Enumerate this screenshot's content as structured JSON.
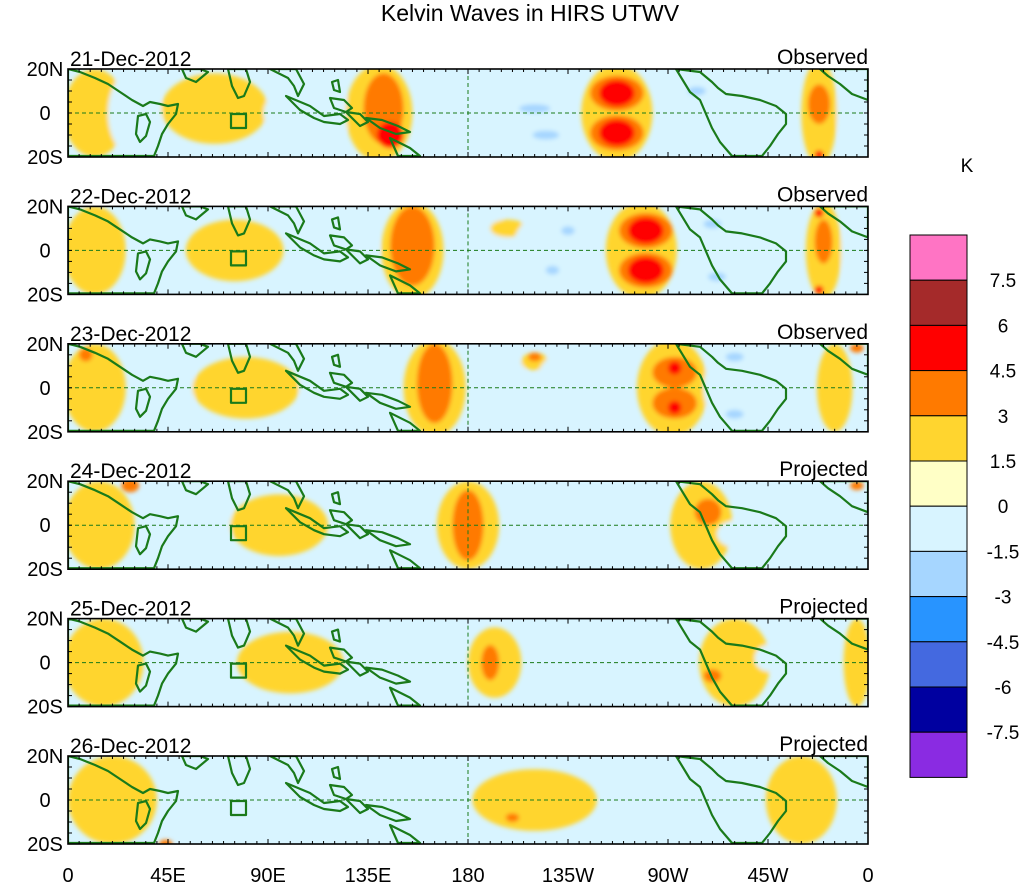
{
  "chart_data": {
    "type": "heatmap",
    "title": "Kelvin Waves in HIRS UTWV",
    "variable": "HIRS UTWV anomaly",
    "units": "K",
    "x_tick_labels": [
      "0",
      "45E",
      "90E",
      "135E",
      "180",
      "135W",
      "90W",
      "45W",
      "0"
    ],
    "x_ticks_deg": [
      0,
      45,
      90,
      135,
      180,
      225,
      270,
      315,
      360
    ],
    "xlim": [
      0,
      360
    ],
    "y_tick_labels": [
      "20N",
      "0",
      "20S"
    ],
    "y_ticks_deg": [
      20,
      0,
      -20
    ],
    "ylim": [
      -20,
      20
    ],
    "colorbar": {
      "label": "K",
      "levels": [
        "7.5",
        "6",
        "4.5",
        "3",
        "1.5",
        "0",
        "-1.5",
        "-3",
        "-4.5",
        "-6",
        "-7.5"
      ],
      "colors": [
        "#ff74c4",
        "#a52a2a",
        "#ff0000",
        "#ff7a00",
        "#ffd52f",
        "#ffffc6",
        "#d8f4ff",
        "#a6d6ff",
        "#2894ff",
        "#4469e0",
        "#0000a0",
        "#8a2be2"
      ]
    },
    "panels": [
      {
        "date": "21-Dec-2012",
        "status": "Observed",
        "blobs": [
          {
            "lon": 12,
            "lat": 0,
            "rlon": 14,
            "rlat": 20,
            "level": 1
          },
          {
            "lon": 30,
            "lat": 0,
            "rlon": 12,
            "rlat": 20,
            "level": -1
          },
          {
            "lon": 66,
            "lat": 2,
            "rlon": 24,
            "rlat": 16,
            "level": 1
          },
          {
            "lon": 108,
            "lat": 0,
            "rlon": 20,
            "rlat": 14,
            "level": -1
          },
          {
            "lon": 140,
            "lat": 0,
            "rlon": 15,
            "rlat": 22,
            "level": 1
          },
          {
            "lon": 142,
            "lat": 2,
            "rlon": 9,
            "rlat": 16,
            "level": 2
          },
          {
            "lon": 145,
            "lat": -10,
            "rlon": 6,
            "rlat": 6,
            "level": 3
          },
          {
            "lon": 172,
            "lat": 0,
            "rlon": 14,
            "rlat": 20,
            "level": -1
          },
          {
            "lon": 205,
            "lat": 0,
            "rlon": 20,
            "rlat": 16,
            "level": -1
          },
          {
            "lon": 210,
            "lat": 2,
            "rlon": 7,
            "rlat": 2,
            "level": -2
          },
          {
            "lon": 215,
            "lat": -10,
            "rlon": 6,
            "rlat": 2,
            "level": -2
          },
          {
            "lon": 247,
            "lat": 0,
            "rlon": 16,
            "rlat": 22,
            "level": 1
          },
          {
            "lon": 247,
            "lat": 9,
            "rlon": 12,
            "rlat": 8,
            "level": 2
          },
          {
            "lon": 247,
            "lat": -9,
            "rlon": 12,
            "rlat": 8,
            "level": 2
          },
          {
            "lon": 247,
            "lat": 9,
            "rlon": 8,
            "rlat": 6,
            "level": 3
          },
          {
            "lon": 247,
            "lat": -9,
            "rlon": 8,
            "rlat": 6,
            "level": 3
          },
          {
            "lon": 280,
            "lat": 0,
            "rlon": 12,
            "rlat": 18,
            "level": -1
          },
          {
            "lon": 283,
            "lat": 10,
            "rlon": 4,
            "rlat": 2,
            "level": -2
          },
          {
            "lon": 314,
            "lat": 0,
            "rlon": 12,
            "rlat": 20,
            "level": -1
          },
          {
            "lon": 338,
            "lat": 0,
            "rlon": 8,
            "rlat": 24,
            "level": 1
          },
          {
            "lon": 338,
            "lat": 4,
            "rlon": 5,
            "rlat": 9,
            "level": 2
          },
          {
            "lon": 338,
            "lat": -19,
            "rlon": 2,
            "rlat": 2,
            "level": 3
          },
          {
            "lon": 354,
            "lat": 0,
            "rlon": 8,
            "rlat": 20,
            "level": -1
          }
        ]
      },
      {
        "date": "22-Dec-2012",
        "status": "Observed",
        "blobs": [
          {
            "lon": 12,
            "lat": 0,
            "rlon": 14,
            "rlat": 20,
            "level": 1
          },
          {
            "lon": 38,
            "lat": 0,
            "rlon": 10,
            "rlat": 20,
            "level": -1
          },
          {
            "lon": 75,
            "lat": 0,
            "rlon": 22,
            "rlat": 14,
            "level": 1
          },
          {
            "lon": 122,
            "lat": 0,
            "rlon": 18,
            "rlat": 14,
            "level": -1
          },
          {
            "lon": 155,
            "lat": 0,
            "rlon": 14,
            "rlat": 22,
            "level": 1
          },
          {
            "lon": 155,
            "lat": 2,
            "rlon": 10,
            "rlat": 18,
            "level": 2
          },
          {
            "lon": 188,
            "lat": 0,
            "rlon": 12,
            "rlat": 18,
            "level": -1
          },
          {
            "lon": 198,
            "lat": 10,
            "rlon": 8,
            "rlat": 4,
            "level": 1
          },
          {
            "lon": 218,
            "lat": 0,
            "rlon": 18,
            "rlat": 18,
            "level": -1
          },
          {
            "lon": 225,
            "lat": 9,
            "rlon": 3,
            "rlat": 2,
            "level": -2
          },
          {
            "lon": 218,
            "lat": -9,
            "rlon": 3,
            "rlat": 2,
            "level": -2
          },
          {
            "lon": 258,
            "lat": 0,
            "rlon": 16,
            "rlat": 22,
            "level": 1
          },
          {
            "lon": 260,
            "lat": 9,
            "rlon": 12,
            "rlat": 8,
            "level": 2
          },
          {
            "lon": 260,
            "lat": -9,
            "rlon": 12,
            "rlat": 8,
            "level": 2
          },
          {
            "lon": 260,
            "lat": 9,
            "rlon": 8,
            "rlat": 6,
            "level": 3
          },
          {
            "lon": 260,
            "lat": -9,
            "rlon": 8,
            "rlat": 6,
            "level": 3
          },
          {
            "lon": 290,
            "lat": 0,
            "rlon": 12,
            "rlat": 18,
            "level": -1
          },
          {
            "lon": 290,
            "lat": 12,
            "rlon": 4,
            "rlat": 2,
            "level": -2
          },
          {
            "lon": 292,
            "lat": -12,
            "rlon": 4,
            "rlat": 2,
            "level": -2
          },
          {
            "lon": 340,
            "lat": 0,
            "rlon": 8,
            "rlat": 22,
            "level": 1
          },
          {
            "lon": 340,
            "lat": 4,
            "rlon": 4,
            "rlat": 10,
            "level": 2
          },
          {
            "lon": 338,
            "lat": 17,
            "rlon": 2,
            "rlat": 2,
            "level": 3
          },
          {
            "lon": 338,
            "lat": -18,
            "rlon": 2,
            "rlat": 2,
            "level": 3
          },
          {
            "lon": 355,
            "lat": 0,
            "rlon": 7,
            "rlat": 20,
            "level": -1
          }
        ]
      },
      {
        "date": "23-Dec-2012",
        "status": "Observed",
        "blobs": [
          {
            "lon": 12,
            "lat": 0,
            "rlon": 14,
            "rlat": 20,
            "level": 1
          },
          {
            "lon": 8,
            "lat": 15,
            "rlon": 3,
            "rlat": 3,
            "level": 2
          },
          {
            "lon": 45,
            "lat": 0,
            "rlon": 12,
            "rlat": 20,
            "level": -1
          },
          {
            "lon": 80,
            "lat": 0,
            "rlon": 24,
            "rlat": 14,
            "level": 1
          },
          {
            "lon": 120,
            "lat": 0,
            "rlon": 16,
            "rlat": 12,
            "level": -1
          },
          {
            "lon": 165,
            "lat": 0,
            "rlon": 14,
            "rlat": 22,
            "level": 1
          },
          {
            "lon": 165,
            "lat": 2,
            "rlon": 8,
            "rlat": 18,
            "level": 2
          },
          {
            "lon": 197,
            "lat": 0,
            "rlon": 10,
            "rlat": 16,
            "level": -1
          },
          {
            "lon": 210,
            "lat": 12,
            "rlon": 6,
            "rlat": 4,
            "level": 1
          },
          {
            "lon": 210,
            "lat": 14,
            "rlon": 3,
            "rlat": 2,
            "level": 2
          },
          {
            "lon": 228,
            "lat": 0,
            "rlon": 18,
            "rlat": 18,
            "level": -1
          },
          {
            "lon": 272,
            "lat": 0,
            "rlon": 16,
            "rlat": 22,
            "level": 1
          },
          {
            "lon": 273,
            "lat": 7,
            "rlon": 10,
            "rlat": 7,
            "level": 2
          },
          {
            "lon": 273,
            "lat": -7,
            "rlon": 10,
            "rlat": 7,
            "level": 2
          },
          {
            "lon": 273,
            "lat": 9,
            "rlon": 3,
            "rlat": 3,
            "level": 3
          },
          {
            "lon": 273,
            "lat": -9,
            "rlon": 3,
            "rlat": 3,
            "level": 3
          },
          {
            "lon": 298,
            "lat": 0,
            "rlon": 12,
            "rlat": 18,
            "level": -1
          },
          {
            "lon": 300,
            "lat": 14,
            "rlon": 4,
            "rlat": 2,
            "level": -2
          },
          {
            "lon": 300,
            "lat": -12,
            "rlon": 4,
            "rlat": 2,
            "level": -2
          },
          {
            "lon": 345,
            "lat": 0,
            "rlon": 8,
            "rlat": 20,
            "level": 1
          },
          {
            "lon": 355,
            "lat": 18,
            "rlon": 3,
            "rlat": 2,
            "level": 2
          }
        ]
      },
      {
        "date": "24-Dec-2012",
        "status": "Projected",
        "blobs": [
          {
            "lon": 14,
            "lat": 0,
            "rlon": 16,
            "rlat": 20,
            "level": 1
          },
          {
            "lon": 28,
            "lat": 18,
            "rlon": 4,
            "rlat": 3,
            "level": 2
          },
          {
            "lon": 60,
            "lat": 0,
            "rlon": 14,
            "rlat": 16,
            "level": -1
          },
          {
            "lon": 95,
            "lat": 0,
            "rlon": 22,
            "rlat": 14,
            "level": 1
          },
          {
            "lon": 135,
            "lat": 0,
            "rlon": 14,
            "rlat": 12,
            "level": -1
          },
          {
            "lon": 180,
            "lat": 0,
            "rlon": 14,
            "rlat": 20,
            "level": 1
          },
          {
            "lon": 180,
            "lat": 0,
            "rlon": 7,
            "rlat": 16,
            "level": 2
          },
          {
            "lon": 212,
            "lat": 0,
            "rlon": 10,
            "rlat": 14,
            "level": -1
          },
          {
            "lon": 240,
            "lat": 0,
            "rlon": 16,
            "rlat": 18,
            "level": -1
          },
          {
            "lon": 248,
            "lat": 2,
            "rlon": 6,
            "rlat": 10,
            "level": -1
          },
          {
            "lon": 285,
            "lat": 0,
            "rlon": 14,
            "rlat": 20,
            "level": 1
          },
          {
            "lon": 288,
            "lat": 6,
            "rlon": 6,
            "rlat": 6,
            "level": 2
          },
          {
            "lon": 300,
            "lat": -4,
            "rlon": 8,
            "rlat": 6,
            "level": -1
          },
          {
            "lon": 355,
            "lat": 18,
            "rlon": 3,
            "rlat": 2,
            "level": 2
          }
        ]
      },
      {
        "date": "25-Dec-2012",
        "status": "Projected",
        "blobs": [
          {
            "lon": 16,
            "lat": 0,
            "rlon": 18,
            "rlat": 20,
            "level": 1
          },
          {
            "lon": 55,
            "lat": 0,
            "rlon": 14,
            "rlat": 16,
            "level": -1
          },
          {
            "lon": 100,
            "lat": 0,
            "rlon": 24,
            "rlat": 14,
            "level": 1
          },
          {
            "lon": 150,
            "lat": 0,
            "rlon": 16,
            "rlat": 12,
            "level": -1
          },
          {
            "lon": 192,
            "lat": 0,
            "rlon": 12,
            "rlat": 16,
            "level": 1
          },
          {
            "lon": 190,
            "lat": 0,
            "rlon": 4,
            "rlat": 8,
            "level": 2
          },
          {
            "lon": 245,
            "lat": 0,
            "rlon": 16,
            "rlat": 16,
            "level": -1
          },
          {
            "lon": 300,
            "lat": 0,
            "rlon": 16,
            "rlat": 20,
            "level": 1
          },
          {
            "lon": 290,
            "lat": -6,
            "rlon": 4,
            "rlat": 3,
            "level": 2
          },
          {
            "lon": 315,
            "lat": 2,
            "rlon": 6,
            "rlat": 6,
            "level": -1
          },
          {
            "lon": 355,
            "lat": 0,
            "rlon": 6,
            "rlat": 20,
            "level": 1
          }
        ]
      },
      {
        "date": "26-Dec-2012",
        "status": "Projected",
        "blobs": [
          {
            "lon": 20,
            "lat": 0,
            "rlon": 20,
            "rlat": 20,
            "level": 1
          },
          {
            "lon": 44,
            "lat": -20,
            "rlon": 3,
            "rlat": 2,
            "level": 2
          },
          {
            "lon": 75,
            "lat": 0,
            "rlon": 14,
            "rlat": 14,
            "level": -1
          },
          {
            "lon": 125,
            "lat": 0,
            "rlon": 30,
            "rlat": 18,
            "level": -1
          },
          {
            "lon": 210,
            "lat": 0,
            "rlon": 28,
            "rlat": 14,
            "level": 1
          },
          {
            "lon": 200,
            "lat": -8,
            "rlon": 3,
            "rlat": 2,
            "level": 2
          },
          {
            "lon": 285,
            "lat": 0,
            "rlon": 20,
            "rlat": 14,
            "level": -1
          },
          {
            "lon": 330,
            "lat": 0,
            "rlon": 16,
            "rlat": 20,
            "level": 1
          }
        ]
      }
    ]
  }
}
